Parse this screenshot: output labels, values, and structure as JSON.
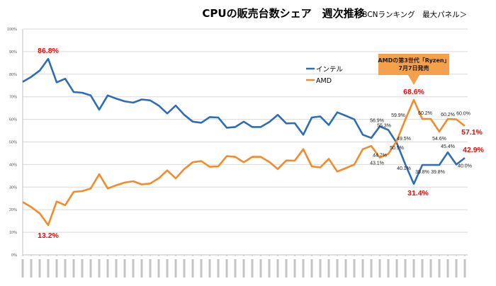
{
  "chart_data": {
    "type": "line",
    "title": "CPUの販売台数シェア　週次推移",
    "subtitle": "＜BCNランキング　最大パネル＞",
    "xlabel": "",
    "ylabel": "",
    "ylim": [
      0,
      100
    ],
    "yticks": [
      "0%",
      "10%",
      "20%",
      "30%",
      "40%",
      "50%",
      "60%",
      "70%",
      "80%",
      "90%",
      "100%"
    ],
    "grid": true,
    "legend_position": "center-right",
    "x_tick_label_note": "weekly date labels (rotated, illegible at source resolution)",
    "x_count": 53,
    "series": [
      {
        "name": "インテル",
        "color": "#2e6db4",
        "values": [
          76.6,
          78.8,
          81.6,
          86.8,
          76.4,
          78.0,
          72.1,
          71.8,
          70.6,
          64.3,
          70.6,
          69.2,
          68.0,
          67.4,
          68.8,
          68.4,
          66.1,
          62.6,
          66.1,
          62.0,
          59.0,
          58.5,
          61.0,
          60.8,
          56.3,
          56.6,
          59.0,
          56.6,
          56.6,
          58.8,
          62.0,
          58.2,
          58.3,
          53.2,
          60.8,
          61.3,
          57.5,
          63.1,
          61.6,
          60.0,
          53.2,
          51.8,
          56.9,
          55.3,
          49.5,
          40.1,
          31.4,
          39.8,
          39.8,
          39.8,
          45.4,
          40.0,
          42.9
        ]
      },
      {
        "name": "AMD",
        "color": "#f58a2a",
        "values": [
          23.4,
          21.2,
          18.4,
          13.2,
          23.6,
          22.0,
          27.9,
          28.2,
          29.4,
          35.7,
          29.4,
          30.8,
          32.0,
          32.6,
          31.2,
          31.6,
          33.9,
          37.4,
          33.9,
          38.0,
          41.0,
          41.5,
          39.0,
          39.2,
          43.7,
          43.4,
          41.0,
          43.4,
          43.4,
          41.2,
          38.0,
          41.8,
          41.7,
          46.8,
          39.2,
          38.7,
          42.5,
          36.9,
          38.4,
          40.0,
          46.8,
          48.2,
          43.1,
          44.7,
          50.5,
          59.9,
          68.6,
          60.2,
          60.2,
          54.6,
          60.2,
          60.0,
          57.1
        ]
      }
    ],
    "data_labels": [
      {
        "series": "インテル",
        "index": 3,
        "text": "86.8%",
        "style": "red"
      },
      {
        "series": "AMD",
        "index": 3,
        "text": "13.2%",
        "style": "red"
      },
      {
        "series": "インテル",
        "index": 42,
        "text": "56.9%",
        "style": "small"
      },
      {
        "series": "インテル",
        "index": 43,
        "text": "55.3%",
        "style": "small"
      },
      {
        "series": "インテル",
        "index": 44,
        "text": "49.5%",
        "style": "small"
      },
      {
        "series": "インテル",
        "index": 45,
        "text": "40.1%",
        "style": "small"
      },
      {
        "series": "インテル",
        "index": 46,
        "text": "31.4%",
        "style": "red"
      },
      {
        "series": "インテル",
        "index": 47,
        "text": "39.8%",
        "style": "small"
      },
      {
        "series": "インテル",
        "index": 49,
        "text": "39.8%",
        "style": "small"
      },
      {
        "series": "インテル",
        "index": 50,
        "text": "45.4%",
        "style": "small"
      },
      {
        "series": "インテル",
        "index": 51,
        "text": "40.0%",
        "style": "small"
      },
      {
        "series": "インテル",
        "index": 52,
        "text": "42.9%",
        "style": "red"
      },
      {
        "series": "AMD",
        "index": 42,
        "text": "43.1%",
        "style": "small"
      },
      {
        "series": "AMD",
        "index": 43,
        "text": "44.7%",
        "style": "small"
      },
      {
        "series": "AMD",
        "index": 44,
        "text": "50.5%",
        "style": "small"
      },
      {
        "series": "AMD",
        "index": 45,
        "text": "59.9%",
        "style": "small"
      },
      {
        "series": "AMD",
        "index": 46,
        "text": "68.6%",
        "style": "red"
      },
      {
        "series": "AMD",
        "index": 47,
        "text": "60.2%",
        "style": "small"
      },
      {
        "series": "AMD",
        "index": 49,
        "text": "54.6%",
        "style": "small"
      },
      {
        "series": "AMD",
        "index": 50,
        "text": "60.2%",
        "style": "small"
      },
      {
        "series": "AMD",
        "index": 51,
        "text": "60.0%",
        "style": "small"
      },
      {
        "series": "AMD",
        "index": 52,
        "text": "57.1%",
        "style": "red"
      }
    ],
    "annotation": {
      "lines": [
        "AMDの第3世代「Ryzen」",
        "7月7日発売"
      ],
      "points_to_index": 46,
      "color": "#f5a04a"
    }
  }
}
